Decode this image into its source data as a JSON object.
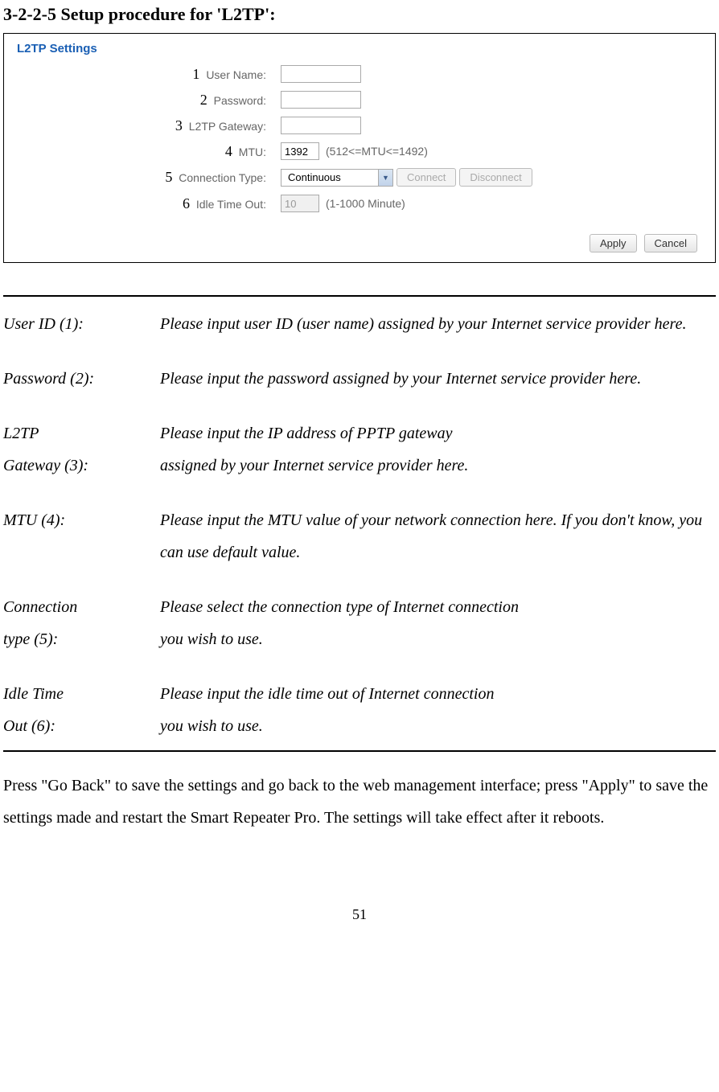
{
  "heading": "3-2-2-5 Setup procedure for 'L2TP':",
  "panel": {
    "title": "L2TP  Settings",
    "accent_color": "#1a5fb4",
    "fields": {
      "username": {
        "marker": "1",
        "label": "User Name:",
        "value": ""
      },
      "password": {
        "marker": "2",
        "label": "Password:",
        "value": ""
      },
      "gateway": {
        "marker": "3",
        "label": "L2TP Gateway:",
        "value": ""
      },
      "mtu": {
        "marker": "4",
        "label": "MTU:",
        "value": "1392",
        "hint": "(512<=MTU<=1492)"
      },
      "conntype": {
        "marker": "5",
        "label": "Connection Type:",
        "selected": "Continuous",
        "connect_btn": "Connect",
        "disconnect_btn": "Disconnect"
      },
      "idle": {
        "marker": "6",
        "label": "Idle Time Out:",
        "value": "10",
        "hint": "(1-1000 Minute)"
      }
    },
    "apply_btn": "Apply",
    "cancel_btn": "Cancel"
  },
  "definitions": [
    {
      "left": "User ID (1):",
      "right": "Please input user ID (user name) assigned by your Internet service provider here."
    },
    {
      "left": "Password (2):",
      "right": "Please input the password assigned by your Internet service provider here."
    },
    {
      "left": "L2TP\nGateway (3):",
      "right": "Please input the IP address of PPTP gateway\nassigned by your Internet service provider here."
    },
    {
      "left": "MTU (4):",
      "right": "Please input the MTU value of your network connection here. If you don't know, you can use default value."
    },
    {
      "left": "Connection\ntype (5):",
      "right": "Please select the connection type of Internet connection\nyou wish to use."
    },
    {
      "left": "Idle Time\nOut (6):",
      "right": "Please input the idle time out of Internet connection\nyou wish to use."
    }
  ],
  "closing": "Press \"Go Back\" to save the settings and go back to the web management interface; press \"Apply\" to save the settings made and restart the Smart Repeater Pro.    The settings will take effect after it reboots.",
  "page_number": "51"
}
